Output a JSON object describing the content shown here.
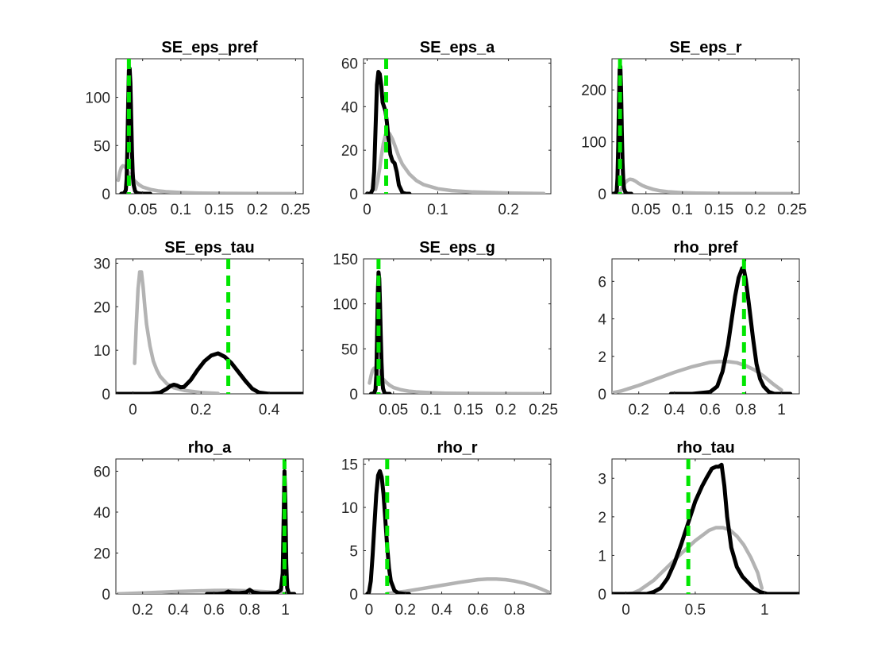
{
  "figure": {
    "background": "#ffffff",
    "colors": {
      "prior": "#b3b3b3",
      "posterior": "#000000",
      "mode": "#00e600",
      "axis": "#262626"
    }
  },
  "chart_data": [
    {
      "type": "line",
      "title": "SE_eps_pref",
      "xlim": [
        0.015,
        0.26
      ],
      "ylim": [
        0,
        140
      ],
      "xticks": [
        0.05,
        0.1,
        0.15,
        0.2,
        0.25
      ],
      "xticklabels": [
        "0.05",
        "0.1",
        "0.15",
        "0.2",
        "0.25"
      ],
      "yticks": [
        0,
        50,
        100
      ],
      "yticklabels": [
        "0",
        "50",
        "100"
      ],
      "series": [
        {
          "role": "prior",
          "x": [
            0.018,
            0.02,
            0.022,
            0.024,
            0.026,
            0.028,
            0.03,
            0.033,
            0.036,
            0.04,
            0.045,
            0.05,
            0.06,
            0.07,
            0.08,
            0.1,
            0.12,
            0.15,
            0.2,
            0.25
          ],
          "y": [
            14,
            22,
            27,
            29,
            28.5,
            27,
            24,
            20,
            16.5,
            13,
            9.5,
            7,
            4.5,
            3,
            2.2,
            1.2,
            0.7,
            0.4,
            0.2,
            0.1
          ]
        },
        {
          "role": "posterior",
          "x": [
            0.022,
            0.026,
            0.028,
            0.029,
            0.03,
            0.031,
            0.032,
            0.033,
            0.034,
            0.035,
            0.036,
            0.037,
            0.038,
            0.04,
            0.042,
            0.046,
            0.05,
            0.055,
            0.06
          ],
          "y": [
            0,
            0.5,
            4,
            15,
            45,
            90,
            128,
            130,
            115,
            80,
            45,
            22,
            10,
            3,
            1,
            0.2,
            0,
            0,
            0
          ]
        },
        {
          "role": "mode",
          "x": 0.032
        }
      ]
    },
    {
      "type": "line",
      "title": "SE_eps_a",
      "xlim": [
        -0.005,
        0.26
      ],
      "ylim": [
        0,
        62
      ],
      "xticks": [
        0,
        0.1,
        0.2
      ],
      "xticklabels": [
        "0",
        "0.1",
        "0.2"
      ],
      "yticks": [
        0,
        20,
        40,
        60
      ],
      "yticklabels": [
        "0",
        "20",
        "40",
        "60"
      ],
      "series": [
        {
          "role": "prior",
          "x": [
            0.012,
            0.015,
            0.018,
            0.02,
            0.023,
            0.026,
            0.029,
            0.032,
            0.036,
            0.04,
            0.045,
            0.05,
            0.06,
            0.07,
            0.08,
            0.1,
            0.12,
            0.15,
            0.2,
            0.25
          ],
          "y": [
            2,
            6,
            12,
            17,
            23,
            27,
            28.5,
            27.5,
            25,
            21.5,
            17,
            13.5,
            9,
            6,
            4.2,
            2.3,
            1.4,
            0.8,
            0.3,
            0.1
          ]
        },
        {
          "role": "posterior",
          "x": [
            0.0,
            0.005,
            0.008,
            0.01,
            0.012,
            0.014,
            0.016,
            0.018,
            0.02,
            0.022,
            0.024,
            0.026,
            0.028,
            0.03,
            0.033,
            0.036,
            0.039,
            0.042,
            0.045,
            0.05,
            0.055,
            0.06
          ],
          "y": [
            0,
            0,
            2,
            10,
            30,
            50,
            56,
            55,
            50,
            42,
            40,
            38,
            33,
            26,
            18,
            15,
            14,
            10,
            4,
            0.5,
            0,
            0
          ]
        },
        {
          "role": "mode",
          "x": 0.027
        }
      ]
    },
    {
      "type": "line",
      "title": "SE_eps_r",
      "xlim": [
        0.0035,
        0.26
      ],
      "ylim": [
        0,
        260
      ],
      "xticks": [
        0.05,
        0.1,
        0.15,
        0.2,
        0.25
      ],
      "xticklabels": [
        "0.05",
        "0.1",
        "0.15",
        "0.2",
        "0.25"
      ],
      "yticks": [
        0,
        100,
        200
      ],
      "yticklabels": [
        "0",
        "100",
        "200"
      ],
      "series": [
        {
          "role": "prior",
          "x": [
            0.012,
            0.014,
            0.016,
            0.018,
            0.02,
            0.022,
            0.025,
            0.028,
            0.032,
            0.036,
            0.04,
            0.045,
            0.05,
            0.06,
            0.07,
            0.08,
            0.1,
            0.12,
            0.15,
            0.2,
            0.25
          ],
          "y": [
            0,
            3,
            8,
            13,
            18,
            22,
            26,
            28,
            27,
            24,
            20,
            16,
            13,
            8.5,
            5.5,
            3.8,
            2,
            1.2,
            0.6,
            0.3,
            0.1
          ]
        },
        {
          "role": "posterior",
          "x": [
            0.005,
            0.008,
            0.01,
            0.011,
            0.012,
            0.013,
            0.014,
            0.015,
            0.016,
            0.017,
            0.018,
            0.019,
            0.02,
            0.022,
            0.025,
            0.03
          ],
          "y": [
            0,
            0,
            5,
            30,
            90,
            170,
            240,
            245,
            200,
            120,
            60,
            25,
            10,
            2,
            0,
            0
          ]
        },
        {
          "role": "mode",
          "x": 0.0145
        }
      ]
    },
    {
      "type": "line",
      "title": "SE_eps_tau",
      "xlim": [
        -0.05,
        0.5
      ],
      "ylim": [
        0,
        31
      ],
      "xticks": [
        0,
        0.2,
        0.4
      ],
      "xticklabels": [
        "0",
        "0.2",
        "0.4"
      ],
      "yticks": [
        0,
        10,
        20,
        30
      ],
      "yticklabels": [
        "0",
        "10",
        "20",
        "30"
      ],
      "series": [
        {
          "role": "prior",
          "x": [
            0.005,
            0.01,
            0.015,
            0.02,
            0.025,
            0.03,
            0.035,
            0.04,
            0.05,
            0.06,
            0.07,
            0.08,
            0.1,
            0.12,
            0.15,
            0.2,
            0.25
          ],
          "y": [
            7,
            16,
            24,
            28,
            28,
            24.5,
            20,
            16,
            11,
            7.5,
            5.5,
            4,
            2.3,
            1.4,
            0.8,
            0.3,
            0.1
          ]
        },
        {
          "role": "posterior",
          "x": [
            -0.05,
            0.05,
            0.08,
            0.1,
            0.11,
            0.12,
            0.13,
            0.14,
            0.15,
            0.17,
            0.19,
            0.21,
            0.23,
            0.25,
            0.27,
            0.29,
            0.31,
            0.33,
            0.35,
            0.37,
            0.4,
            0.5
          ],
          "y": [
            0,
            0,
            0.3,
            1.2,
            1.8,
            2.1,
            1.9,
            1.5,
            1.6,
            3.2,
            5.5,
            7.5,
            8.8,
            9.3,
            8.5,
            7,
            5,
            3,
            1.2,
            0.3,
            0,
            0
          ]
        },
        {
          "role": "mode",
          "x": 0.28
        }
      ]
    },
    {
      "type": "line",
      "title": "SE_eps_g",
      "xlim": [
        0.01,
        0.26
      ],
      "ylim": [
        0,
        150
      ],
      "xticks": [
        0.05,
        0.1,
        0.15,
        0.2,
        0.25
      ],
      "xticklabels": [
        "0.05",
        "0.1",
        "0.15",
        "0.2",
        "0.25"
      ],
      "yticks": [
        0,
        50,
        100,
        150
      ],
      "yticklabels": [
        "0",
        "50",
        "100",
        "150"
      ],
      "series": [
        {
          "role": "prior",
          "x": [
            0.018,
            0.02,
            0.022,
            0.024,
            0.026,
            0.028,
            0.03,
            0.033,
            0.036,
            0.04,
            0.045,
            0.05,
            0.06,
            0.07,
            0.08,
            0.1,
            0.12,
            0.15,
            0.2,
            0.25
          ],
          "y": [
            12,
            20,
            26,
            28.5,
            28.5,
            27,
            24,
            20,
            16.5,
            13,
            9.5,
            7,
            4.5,
            3,
            2.2,
            1.2,
            0.7,
            0.4,
            0.2,
            0.1
          ]
        },
        {
          "role": "posterior",
          "x": [
            0.02,
            0.024,
            0.026,
            0.027,
            0.028,
            0.029,
            0.03,
            0.031,
            0.032,
            0.033,
            0.034,
            0.035,
            0.036,
            0.038,
            0.04,
            0.045
          ],
          "y": [
            0,
            0.5,
            5,
            20,
            60,
            110,
            135,
            128,
            100,
            65,
            35,
            15,
            6,
            1,
            0,
            0
          ]
        },
        {
          "role": "mode",
          "x": 0.03
        }
      ]
    },
    {
      "type": "line",
      "title": "rho_pref",
      "xlim": [
        0.05,
        1.1
      ],
      "ylim": [
        0,
        7.2
      ],
      "xticks": [
        0.2,
        0.4,
        0.6,
        0.8,
        1
      ],
      "xticklabels": [
        "0.2",
        "0.4",
        "0.6",
        "0.8",
        "1"
      ],
      "yticks": [
        0,
        2,
        4,
        6
      ],
      "yticklabels": [
        "0",
        "2",
        "4",
        "6"
      ],
      "series": [
        {
          "role": "prior",
          "x": [
            0.05,
            0.1,
            0.15,
            0.2,
            0.3,
            0.4,
            0.5,
            0.6,
            0.65,
            0.7,
            0.75,
            0.8,
            0.85,
            0.9,
            0.95,
            1.0
          ],
          "y": [
            0.05,
            0.15,
            0.3,
            0.45,
            0.8,
            1.15,
            1.45,
            1.68,
            1.72,
            1.72,
            1.66,
            1.5,
            1.27,
            0.95,
            0.55,
            0.2
          ]
        },
        {
          "role": "posterior",
          "x": [
            0.38,
            0.5,
            0.6,
            0.64,
            0.67,
            0.7,
            0.72,
            0.74,
            0.76,
            0.78,
            0.79,
            0.8,
            0.82,
            0.84,
            0.86,
            0.88,
            0.9,
            0.93,
            0.96,
            1.0,
            1.05
          ],
          "y": [
            0,
            0,
            0.1,
            0.4,
            1.2,
            2.6,
            3.9,
            5.2,
            6.2,
            6.7,
            6.6,
            6.1,
            4.6,
            3.0,
            1.6,
            0.8,
            0.4,
            0.1,
            0,
            0,
            0
          ]
        },
        {
          "role": "mode",
          "x": 0.79
        }
      ]
    },
    {
      "type": "line",
      "title": "rho_a",
      "xlim": [
        0.05,
        1.1
      ],
      "ylim": [
        0,
        66
      ],
      "xticks": [
        0.2,
        0.4,
        0.6,
        0.8,
        1
      ],
      "xticklabels": [
        "0.2",
        "0.4",
        "0.6",
        "0.8",
        "1"
      ],
      "yticks": [
        0,
        20,
        40,
        60
      ],
      "yticklabels": [
        "0",
        "20",
        "40",
        "60"
      ],
      "series": [
        {
          "role": "prior",
          "x": [
            0.05,
            0.2,
            0.4,
            0.6,
            0.7,
            0.8,
            0.9,
            1.0
          ],
          "y": [
            0,
            0.5,
            1.2,
            1.7,
            1.75,
            1.5,
            1.0,
            0.2
          ]
        },
        {
          "role": "posterior",
          "x": [
            0.56,
            0.62,
            0.66,
            0.68,
            0.7,
            0.74,
            0.78,
            0.8,
            0.82,
            0.86,
            0.9,
            0.95,
            0.975,
            0.985,
            0.99,
            0.995,
            1.0,
            1.005,
            1.01,
            1.02,
            1.05
          ],
          "y": [
            0,
            0,
            0.3,
            1.2,
            0.5,
            0.4,
            0.8,
            2,
            0.8,
            0.2,
            0.2,
            0.5,
            2,
            10,
            35,
            60,
            45,
            15,
            3,
            0,
            0
          ]
        },
        {
          "role": "mode",
          "x": 0.995
        }
      ]
    },
    {
      "type": "line",
      "title": "rho_r",
      "xlim": [
        -0.03,
        1.0
      ],
      "ylim": [
        0,
        15.6
      ],
      "xticks": [
        0,
        0.2,
        0.4,
        0.6,
        0.8
      ],
      "xticklabels": [
        "0",
        "0.2",
        "0.4",
        "0.6",
        "0.8"
      ],
      "yticks": [
        0,
        5,
        10,
        15
      ],
      "yticklabels": [
        "0",
        "5",
        "10",
        "15"
      ],
      "series": [
        {
          "role": "prior",
          "x": [
            0.1,
            0.2,
            0.3,
            0.4,
            0.5,
            0.6,
            0.65,
            0.7,
            0.75,
            0.8,
            0.85,
            0.9,
            0.95,
            1.0
          ],
          "y": [
            0.05,
            0.3,
            0.65,
            1.0,
            1.35,
            1.65,
            1.72,
            1.72,
            1.65,
            1.5,
            1.27,
            0.95,
            0.55,
            0.1
          ]
        },
        {
          "role": "posterior",
          "x": [
            -0.01,
            0.0,
            0.01,
            0.02,
            0.03,
            0.04,
            0.05,
            0.06,
            0.07,
            0.08,
            0.09,
            0.1,
            0.11,
            0.12,
            0.14,
            0.16,
            0.2,
            0.22
          ],
          "y": [
            0,
            0.2,
            1.5,
            4.5,
            8,
            11.5,
            13.7,
            14.2,
            13.5,
            11.5,
            8.5,
            5.5,
            3,
            1.5,
            0.4,
            0.1,
            0,
            0
          ]
        },
        {
          "role": "mode",
          "x": 0.1
        }
      ]
    },
    {
      "type": "line",
      "title": "rho_tau",
      "xlim": [
        -0.1,
        1.25
      ],
      "ylim": [
        0,
        3.5
      ],
      "xticks": [
        0,
        0.5,
        1
      ],
      "xticklabels": [
        "0",
        "0.5",
        "1"
      ],
      "yticks": [
        0,
        1,
        2,
        3
      ],
      "yticklabels": [
        "0",
        "1",
        "2",
        "3"
      ],
      "series": [
        {
          "role": "prior",
          "x": [
            0.0,
            0.05,
            0.1,
            0.2,
            0.3,
            0.4,
            0.5,
            0.6,
            0.65,
            0.7,
            0.75,
            0.8,
            0.85,
            0.9,
            0.95,
            0.98
          ],
          "y": [
            0,
            0.02,
            0.1,
            0.35,
            0.7,
            1.05,
            1.38,
            1.65,
            1.72,
            1.72,
            1.66,
            1.5,
            1.27,
            0.95,
            0.55,
            0.15
          ]
        },
        {
          "role": "posterior",
          "x": [
            -0.1,
            0.15,
            0.2,
            0.25,
            0.3,
            0.35,
            0.4,
            0.45,
            0.5,
            0.55,
            0.58,
            0.62,
            0.65,
            0.67,
            0.69,
            0.71,
            0.73,
            0.76,
            0.8,
            0.84,
            0.88,
            0.92,
            0.97,
            1.02,
            1.25
          ],
          "y": [
            0,
            0,
            0.05,
            0.15,
            0.4,
            0.8,
            1.3,
            1.85,
            2.4,
            2.8,
            3.0,
            3.25,
            3.3,
            3.3,
            3.35,
            2.8,
            2.0,
            1.2,
            0.7,
            0.45,
            0.3,
            0.15,
            0.05,
            0,
            0
          ]
        },
        {
          "role": "mode",
          "x": 0.45
        }
      ]
    }
  ]
}
